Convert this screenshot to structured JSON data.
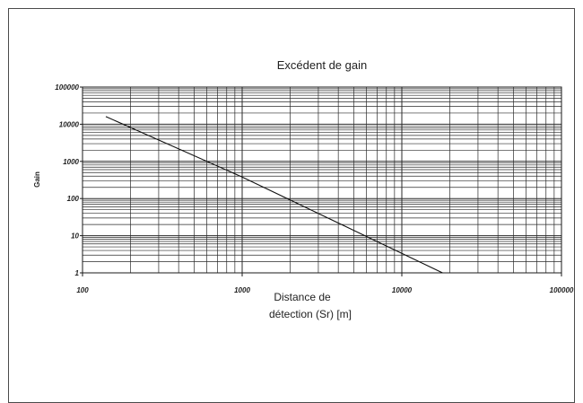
{
  "chart_data": {
    "type": "line",
    "title": "Excédent de gain",
    "xlabel_lines": [
      "Distance de",
      "détection (Sr) [m]"
    ],
    "ylabel": "Gain",
    "x_scale": "log",
    "y_scale": "log",
    "xlim": [
      100,
      100000
    ],
    "ylim": [
      1,
      100000
    ],
    "x_ticks": [
      "100",
      "1000",
      "10000",
      "100000"
    ],
    "y_ticks": [
      "1",
      "10",
      "100",
      "1000",
      "10000",
      "100000"
    ],
    "grid": true,
    "series": [
      {
        "x": [
          140,
          1000,
          18000
        ],
        "y": [
          16000,
          380,
          1
        ]
      }
    ],
    "colors": {
      "line": "#111111",
      "grid": "#2a2a2a",
      "frame": "#4a4a4a"
    }
  }
}
